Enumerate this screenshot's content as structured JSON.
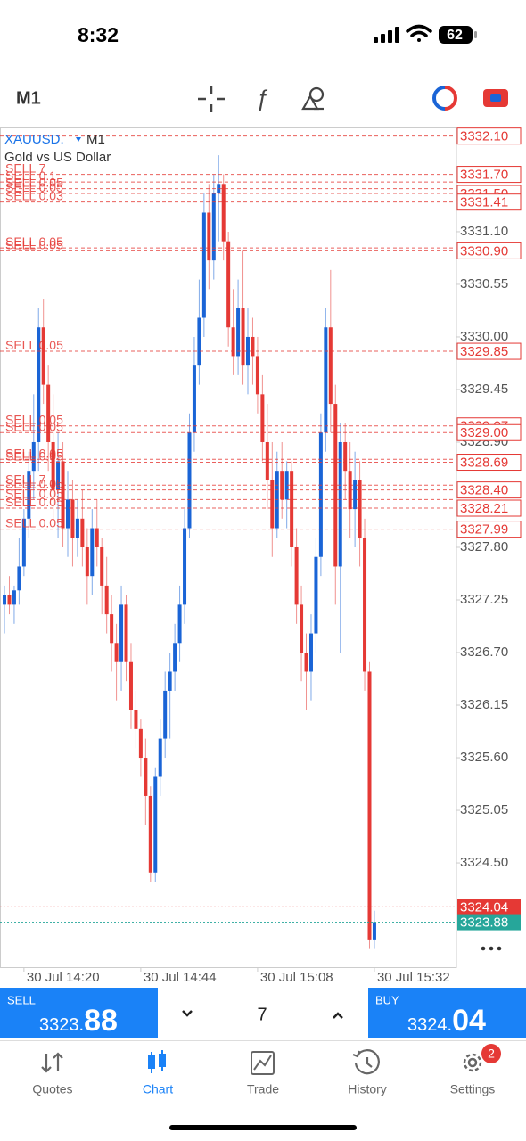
{
  "status_bar": {
    "time": "8:32",
    "battery": "62"
  },
  "toolbar": {
    "timeframe": "M1"
  },
  "chart_data": {
    "type": "candlestick",
    "symbol": "XAUUSD.",
    "timeframe": "M1",
    "title": "Gold vs US Dollar",
    "up_color": "#1a64d6",
    "down_color": "#e53935",
    "ylim": [
      3323.41,
      3332.19
    ],
    "xlim": [
      -0.92,
      92.86
    ],
    "yticks": [
      {
        "value": 3331.1,
        "label": "3331.10"
      },
      3330.55,
      {
        "value": 3330,
        "label": "3330.00"
      },
      3329.45,
      {
        "value": 3328.9,
        "label": "3328.90"
      },
      {
        "value": 3327.8,
        "label": "3327.80"
      },
      3327.25,
      {
        "value": 3326.7,
        "label": "3326.70"
      },
      3326.15,
      {
        "value": 3325.6,
        "label": "3325.60"
      },
      3325.05,
      {
        "value": 3324.5,
        "label": "3324.50"
      }
    ],
    "xticks": [
      {
        "value": 4,
        "label": "30 Jul 14:20"
      },
      {
        "value": 28,
        "label": "30 Jul 14:44"
      },
      {
        "value": 52,
        "label": "30 Jul 15:08"
      },
      {
        "value": 76,
        "label": "30 Jul 15:32"
      }
    ],
    "ohlc": [
      [
        3327.2,
        3327.4,
        3326.9,
        3327.3
      ],
      [
        3327.3,
        3327.5,
        3327.1,
        3327.2
      ],
      [
        3327.2,
        3327.4,
        3327.0,
        3327.35
      ],
      [
        3327.35,
        3327.9,
        3327.2,
        3327.6
      ],
      [
        3327.6,
        3328.2,
        3327.5,
        3328.1
      ],
      [
        3328.1,
        3328.8,
        3327.9,
        3328.6
      ],
      [
        3328.6,
        3329.4,
        3328.3,
        3328.9
      ],
      [
        3328.9,
        3330.3,
        3328.6,
        3330.1
      ],
      [
        3330.1,
        3330.4,
        3329.3,
        3329.5
      ],
      [
        3329.5,
        3329.7,
        3328.6,
        3328.9
      ],
      [
        3328.9,
        3329.4,
        3328.1,
        3328.4
      ],
      [
        3328.4,
        3329.0,
        3327.9,
        3328.7
      ],
      [
        3328.7,
        3328.9,
        3327.8,
        3328.0
      ],
      [
        3328.0,
        3328.6,
        3327.7,
        3328.3
      ],
      [
        3328.3,
        3328.5,
        3327.6,
        3327.9
      ],
      [
        3327.9,
        3328.3,
        3327.7,
        3328.1
      ],
      [
        3328.1,
        3328.4,
        3327.6,
        3327.8
      ],
      [
        3327.8,
        3328.0,
        3327.2,
        3327.5
      ],
      [
        3327.5,
        3328.2,
        3327.3,
        3328.0
      ],
      [
        3328.0,
        3328.3,
        3327.6,
        3327.8
      ],
      [
        3327.8,
        3327.9,
        3327.1,
        3327.4
      ],
      [
        3327.4,
        3327.7,
        3326.9,
        3327.1
      ],
      [
        3327.1,
        3327.3,
        3326.5,
        3326.8
      ],
      [
        3326.8,
        3327.0,
        3326.2,
        3326.6
      ],
      [
        3326.6,
        3327.4,
        3326.3,
        3327.2
      ],
      [
        3327.2,
        3327.3,
        3326.4,
        3326.6
      ],
      [
        3326.6,
        3326.8,
        3325.9,
        3326.1
      ],
      [
        3326.1,
        3326.3,
        3325.7,
        3325.9
      ],
      [
        3325.9,
        3326.0,
        3325.4,
        3325.6
      ],
      [
        3325.6,
        3325.8,
        3324.9,
        3325.2
      ],
      [
        3325.2,
        3325.3,
        3324.3,
        3324.4
      ],
      [
        3324.4,
        3325.5,
        3324.3,
        3325.4
      ],
      [
        3325.4,
        3326.0,
        3325.2,
        3325.8
      ],
      [
        3325.8,
        3326.5,
        3325.6,
        3326.3
      ],
      [
        3326.3,
        3326.7,
        3325.8,
        3326.5
      ],
      [
        3326.5,
        3327.0,
        3326.3,
        3326.8
      ],
      [
        3326.8,
        3327.4,
        3326.6,
        3327.2
      ],
      [
        3327.2,
        3328.2,
        3327.0,
        3328.0
      ],
      [
        3328.0,
        3329.2,
        3327.9,
        3329.0
      ],
      [
        3329.0,
        3330.0,
        3328.8,
        3329.7
      ],
      [
        3329.7,
        3330.6,
        3329.5,
        3330.2
      ],
      [
        3330.2,
        3331.5,
        3330.0,
        3331.3
      ],
      [
        3331.3,
        3331.6,
        3330.5,
        3330.8
      ],
      [
        3330.8,
        3331.7,
        3330.6,
        3331.5
      ],
      [
        3331.5,
        3331.9,
        3331.0,
        3331.6
      ],
      [
        3331.6,
        3331.7,
        3330.8,
        3331.0
      ],
      [
        3331.0,
        3331.1,
        3329.9,
        3330.1
      ],
      [
        3330.1,
        3330.5,
        3329.6,
        3329.8
      ],
      [
        3329.8,
        3330.6,
        3329.6,
        3330.3
      ],
      [
        3330.3,
        3330.9,
        3329.5,
        3329.7
      ],
      [
        3329.7,
        3330.3,
        3329.4,
        3330.0
      ],
      [
        3330.0,
        3330.2,
        3329.5,
        3329.8
      ],
      [
        3329.8,
        3330.0,
        3329.2,
        3329.4
      ],
      [
        3329.4,
        3329.6,
        3328.7,
        3328.9
      ],
      [
        3328.9,
        3329.3,
        3328.2,
        3328.5
      ],
      [
        3328.5,
        3328.9,
        3327.7,
        3328.0
      ],
      [
        3328.0,
        3328.8,
        3327.9,
        3328.6
      ],
      [
        3328.6,
        3328.9,
        3328.1,
        3328.3
      ],
      [
        3328.3,
        3328.7,
        3328.0,
        3328.6
      ],
      [
        3328.6,
        3328.7,
        3327.6,
        3327.8
      ],
      [
        3327.8,
        3328.0,
        3327.0,
        3327.2
      ],
      [
        3327.2,
        3327.4,
        3326.4,
        3326.7
      ],
      [
        3326.7,
        3326.9,
        3326.1,
        3326.5
      ],
      [
        3326.5,
        3327.1,
        3326.2,
        3326.9
      ],
      [
        3326.9,
        3327.9,
        3326.7,
        3327.7
      ],
      [
        3327.7,
        3329.2,
        3327.5,
        3329.0
      ],
      [
        3329.0,
        3330.3,
        3328.8,
        3330.1
      ],
      [
        3330.1,
        3330.7,
        3329.0,
        3329.3
      ],
      [
        3329.3,
        3329.5,
        3327.2,
        3327.6
      ],
      [
        3327.6,
        3329.1,
        3326.7,
        3328.9
      ],
      [
        3328.9,
        3329.1,
        3328.3,
        3328.6
      ],
      [
        3328.6,
        3328.9,
        3327.9,
        3328.2
      ],
      [
        3328.2,
        3328.8,
        3327.8,
        3328.5
      ],
      [
        3328.5,
        3328.7,
        3327.6,
        3327.9
      ],
      [
        3327.9,
        3328.1,
        3326.3,
        3326.5
      ],
      [
        3326.5,
        3326.6,
        3323.6,
        3323.7
      ],
      [
        3323.7,
        3324.0,
        3323.6,
        3323.88
      ]
    ],
    "orders": [
      {
        "price": 3332.1,
        "price_label": "3332.10"
      },
      {
        "label": "SELL 7",
        "price": 3331.7,
        "price_label": "3331.70"
      },
      {
        "label": "SELL 0.1",
        "price": 3331.62
      },
      {
        "label": "SELL 0.05",
        "price": 3331.55
      },
      {
        "label": "SELL 0.05",
        "price": 3331.5,
        "price_label": "3331.50"
      },
      {
        "label": "SELL 0.03",
        "price": 3331.41,
        "price_label": "3331.41"
      },
      {
        "label": "SELL 0.05",
        "price": 3330.93
      },
      {
        "label": "SELL 0.05",
        "price": 3330.9,
        "price_label": "3330.90"
      },
      {
        "label": "SELL 0.05",
        "price": 3329.85,
        "price_label": "3329.85"
      },
      {
        "label": "SELL 0.05",
        "price": 3329.07,
        "price_label": "3329.07"
      },
      {
        "label": "SELL 0.05",
        "price": 3329.0,
        "price_label": "3329.00"
      },
      {
        "label": "SELL 0.05",
        "price": 3328.72
      },
      {
        "label": "SELL 0.05",
        "price": 3328.69,
        "price_label": "3328.69"
      },
      {
        "label": "SELL 7",
        "price": 3328.45
      },
      {
        "label": "SELL 0.05",
        "price": 3328.4,
        "price_label": "3328.40"
      },
      {
        "label": "SELL 0.05",
        "price": 3328.3
      },
      {
        "label": "SELL 0.05",
        "price": 3328.21,
        "price_label": "3328.21"
      },
      {
        "label": "SELL 0.05",
        "price": 3327.99,
        "price_label": "3327.99"
      }
    ],
    "ask": 3324.04,
    "ask_color": "#e53935",
    "bid": 3323.88,
    "bid_color": "#26a69a"
  },
  "trade_panel": {
    "sell_label": "SELL",
    "sell_main": "3323.",
    "sell_pips": "88",
    "volume": "7",
    "buy_label": "BUY",
    "buy_main": "3324.",
    "buy_pips": "04"
  },
  "tabs": [
    {
      "label": "Quotes"
    },
    {
      "label": "Chart"
    },
    {
      "label": "Trade"
    },
    {
      "label": "History"
    },
    {
      "label": "Settings",
      "badge": "2"
    }
  ]
}
